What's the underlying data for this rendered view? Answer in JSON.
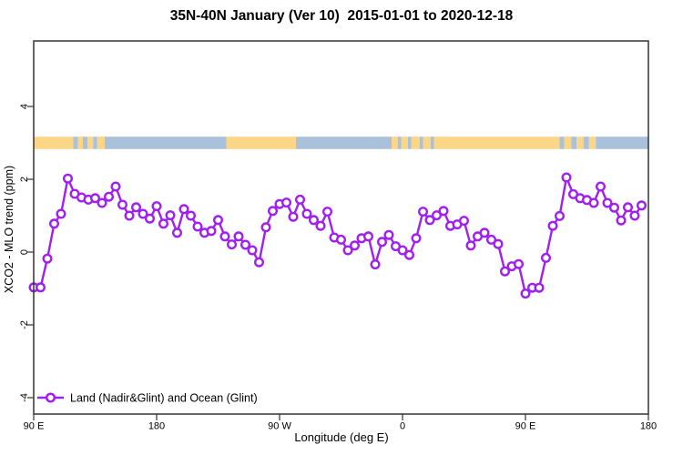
{
  "title": "35N-40N January (Ver 10)  2015-01-01 to 2020-12-18",
  "legend": {
    "label": "Land (Nadir&Glint) and Ocean (Glint)"
  },
  "colors": {
    "line": "#A020F0",
    "marker_fill": "#ffffff",
    "land": "#FBD687",
    "ocean": "#A9C1DB",
    "frame": "#333333"
  },
  "chart_data": {
    "type": "line",
    "title": "35N-40N January (Ver 10)  2015-01-01 to 2020-12-18",
    "xlabel": "Longitude (deg E)",
    "ylabel": "XCO2 - MLO trend (ppm)",
    "xlim": [
      90,
      540
    ],
    "ylim": [
      -4.45,
      5.8
    ],
    "grid": false,
    "legend_position": "bottom-left-inside",
    "x_ticks": [
      {
        "value": 90,
        "label": "90 E"
      },
      {
        "value": 180,
        "label": "180"
      },
      {
        "value": 270,
        "label": "90 W"
      },
      {
        "value": 360,
        "label": "0"
      },
      {
        "value": 450,
        "label": "90 E"
      },
      {
        "value": 540,
        "label": "180"
      }
    ],
    "y_ticks": [
      {
        "value": 4,
        "label": "4"
      },
      {
        "value": 2,
        "label": "2"
      },
      {
        "value": 0,
        "label": "0"
      },
      {
        "value": -2,
        "label": "-2"
      },
      {
        "value": -4,
        "label": "-4"
      }
    ],
    "series": [
      {
        "name": "Land (Nadir&Glint) and Ocean (Glint)",
        "marker": "open-circle",
        "x": [
          90,
          95,
          100,
          105,
          110,
          115,
          120,
          125,
          130,
          135,
          140,
          145,
          150,
          155,
          160,
          165,
          170,
          175,
          180,
          185,
          190,
          195,
          200,
          205,
          210,
          215,
          220,
          225,
          230,
          235,
          240,
          245,
          250,
          255,
          260,
          265,
          270,
          275,
          280,
          285,
          290,
          295,
          300,
          305,
          310,
          315,
          320,
          325,
          330,
          335,
          340,
          345,
          350,
          355,
          360,
          365,
          370,
          375,
          380,
          385,
          390,
          395,
          400,
          405,
          410,
          415,
          420,
          425,
          430,
          435,
          440,
          445,
          450,
          455,
          460,
          465,
          470,
          475,
          480,
          485,
          490,
          495,
          500,
          505,
          510,
          515,
          520,
          525,
          530,
          535
        ],
        "values": [
          -0.97,
          -0.97,
          -0.18,
          0.78,
          1.05,
          2.02,
          1.6,
          1.5,
          1.44,
          1.48,
          1.35,
          1.52,
          1.8,
          1.3,
          1.0,
          1.23,
          1.05,
          0.92,
          1.26,
          0.78,
          1.01,
          0.53,
          1.18,
          1.0,
          0.7,
          0.53,
          0.58,
          0.88,
          0.43,
          0.21,
          0.43,
          0.2,
          0.05,
          -0.28,
          0.68,
          1.13,
          1.32,
          1.36,
          0.97,
          1.44,
          1.05,
          0.88,
          0.72,
          1.11,
          0.4,
          0.34,
          0.05,
          0.18,
          0.38,
          0.43,
          -0.34,
          0.28,
          0.47,
          0.16,
          0.05,
          -0.08,
          0.38,
          1.11,
          0.88,
          1.01,
          1.13,
          0.72,
          0.76,
          0.86,
          0.18,
          0.43,
          0.53,
          0.34,
          0.22,
          -0.53,
          -0.39,
          -0.33,
          -1.14,
          -0.98,
          -0.98,
          -0.16,
          0.72,
          0.99,
          2.05,
          1.59,
          1.48,
          1.43,
          1.35,
          1.8,
          1.35,
          1.22,
          0.87,
          1.23,
          1.0,
          1.28
        ]
      }
    ],
    "map_band": {
      "description": "world-map latitude strip 35N-40N drawn across the plot",
      "y_center": 3.0,
      "y_half_height": 0.17,
      "segments": [
        {
          "from": 90,
          "to": 119,
          "type": "land"
        },
        {
          "from": 119,
          "to": 122.5,
          "type": "ocean"
        },
        {
          "from": 122.5,
          "to": 126,
          "type": "land"
        },
        {
          "from": 126,
          "to": 129.5,
          "type": "ocean"
        },
        {
          "from": 129.5,
          "to": 133.5,
          "type": "land"
        },
        {
          "from": 133.5,
          "to": 136.5,
          "type": "ocean"
        },
        {
          "from": 136.5,
          "to": 142,
          "type": "land"
        },
        {
          "from": 142,
          "to": 231,
          "type": "ocean"
        },
        {
          "from": 231,
          "to": 282,
          "type": "land"
        },
        {
          "from": 282,
          "to": 352,
          "type": "ocean"
        },
        {
          "from": 352,
          "to": 356.5,
          "type": "land"
        },
        {
          "from": 356.5,
          "to": 359,
          "type": "ocean"
        },
        {
          "from": 359,
          "to": 364,
          "type": "land"
        },
        {
          "from": 364,
          "to": 366.5,
          "type": "ocean"
        },
        {
          "from": 366.5,
          "to": 372.5,
          "type": "land"
        },
        {
          "from": 372.5,
          "to": 375,
          "type": "ocean"
        },
        {
          "from": 375,
          "to": 380.5,
          "type": "land"
        },
        {
          "from": 380.5,
          "to": 383,
          "type": "ocean"
        },
        {
          "from": 383,
          "to": 475,
          "type": "land"
        },
        {
          "from": 475,
          "to": 478.5,
          "type": "ocean"
        },
        {
          "from": 478.5,
          "to": 483.5,
          "type": "land"
        },
        {
          "from": 483.5,
          "to": 487.5,
          "type": "ocean"
        },
        {
          "from": 487.5,
          "to": 492.5,
          "type": "land"
        },
        {
          "from": 492.5,
          "to": 496.5,
          "type": "ocean"
        },
        {
          "from": 496.5,
          "to": 501.5,
          "type": "land"
        },
        {
          "from": 501.5,
          "to": 540,
          "type": "ocean"
        }
      ]
    }
  }
}
